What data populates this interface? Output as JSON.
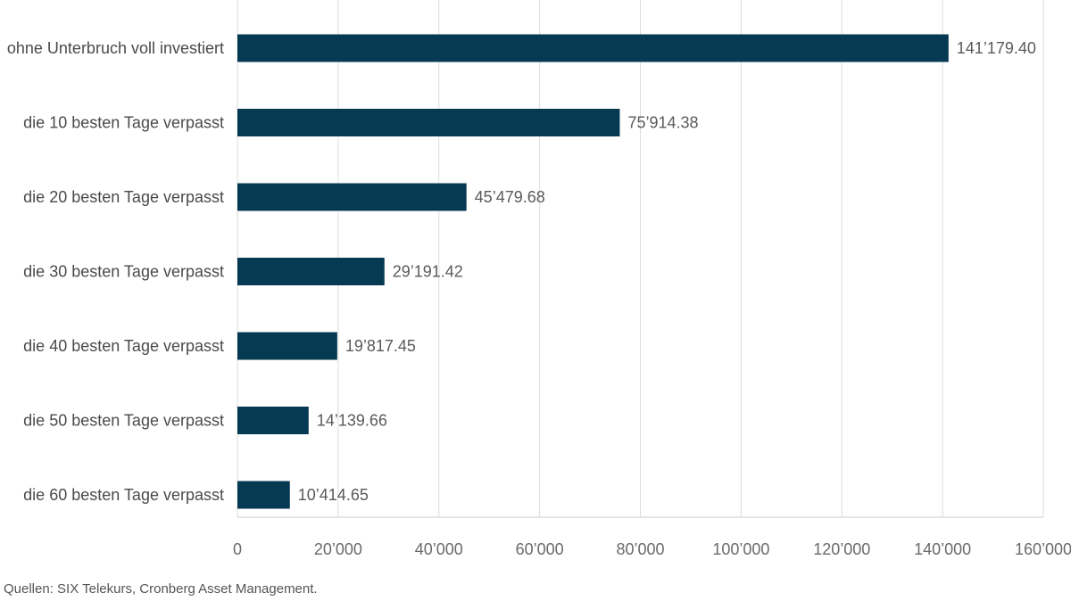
{
  "chart_data": {
    "type": "bar",
    "orientation": "horizontal",
    "categories": [
      "ohne Unterbruch voll investiert",
      "die 10 besten Tage verpasst",
      "die 20 besten Tage verpasst",
      "die 30 besten Tage verpasst",
      "die 40 besten Tage verpasst",
      "die 50 besten Tage verpasst",
      "die 60 besten Tage verpasst"
    ],
    "values": [
      141179.4,
      75914.38,
      45479.68,
      29191.42,
      19817.45,
      14139.66,
      10414.65
    ],
    "value_labels": [
      "141’179.40",
      "75’914.38",
      "45’479.68",
      "29’191.42",
      "19’817.45",
      "14’139.66",
      "10’414.65"
    ],
    "xlim": [
      0,
      160000
    ],
    "x_ticks": [
      0,
      20000,
      40000,
      60000,
      80000,
      100000,
      120000,
      140000,
      160000
    ],
    "x_tick_labels": [
      "0",
      "20’000",
      "40’000",
      "60’000",
      "80’000",
      "100’000",
      "120’000",
      "140’000",
      "160’000"
    ],
    "title": "",
    "xlabel": "",
    "ylabel": "",
    "grid": true,
    "grid_axis": "x",
    "legend": "none",
    "colors": {
      "bar": "#053a52",
      "grid": "#dddddd",
      "axis": "#cccccc"
    }
  },
  "source_note": "Quellen: SIX Telekurs, Cronberg Asset Management."
}
